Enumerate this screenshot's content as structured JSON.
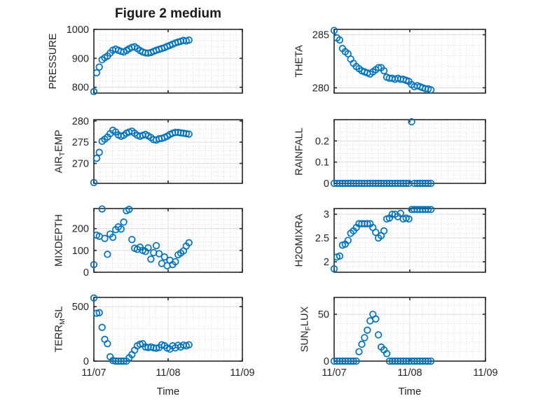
{
  "figure": {
    "title": "Figure 2 medium",
    "layout": "4x2-subplot-grid",
    "background": "#ffffff"
  },
  "style": {
    "axes_color": "#262626",
    "major_grid_color": "#dcdcdc",
    "minor_grid_color": "#d6d6d6",
    "marker_color": "#0072BD",
    "marker_shape": "open-circle"
  },
  "x_axis": {
    "xlabel": "Time",
    "xlim_days": [
      0,
      2
    ],
    "xticks_days": [
      0,
      1,
      2
    ],
    "xtick_labels": [
      "11/07",
      "11/08",
      "11/09"
    ],
    "x_minor_divisions_per_day": 12,
    "t_days": [
      0.0,
      0.037,
      0.073,
      0.11,
      0.146,
      0.183,
      0.219,
      0.256,
      0.293,
      0.329,
      0.366,
      0.402,
      0.439,
      0.475,
      0.512,
      0.549,
      0.585,
      0.622,
      0.658,
      0.695,
      0.731,
      0.768,
      0.805,
      0.841,
      0.878,
      0.914,
      0.951,
      0.987,
      1.024,
      1.06,
      1.097,
      1.134,
      1.17,
      1.207,
      1.243,
      1.28
    ]
  },
  "chart_data": [
    {
      "type": "scatter",
      "name": "pressure",
      "ylabel": {
        "pre": "PRESSURE",
        "sub": "",
        "post": ""
      },
      "ylim": [
        780,
        1000
      ],
      "yticks": [
        800,
        900,
        1000
      ],
      "ytick_labels": [
        "800",
        "900",
        "1000"
      ],
      "y_minor_step": 20,
      "values": [
        785,
        850,
        870,
        895,
        902,
        908,
        918,
        928,
        932,
        928,
        924,
        922,
        927,
        933,
        938,
        940,
        934,
        927,
        922,
        919,
        918,
        920,
        924,
        928,
        931,
        934,
        937,
        941,
        945,
        949,
        953,
        956,
        959,
        962,
        960,
        963
      ]
    },
    {
      "type": "scatter",
      "name": "theta",
      "ylabel": {
        "pre": "THETA",
        "sub": "",
        "post": ""
      },
      "ylim": [
        279.5,
        285.5
      ],
      "yticks": [
        280,
        285
      ],
      "ytick_labels": [
        "280",
        "285"
      ],
      "y_minor_step": 1,
      "values": [
        285.4,
        284.7,
        284.5,
        283.7,
        283.4,
        283.2,
        282.7,
        282.3,
        282.0,
        281.8,
        281.6,
        281.5,
        281.4,
        281.3,
        281.5,
        281.7,
        281.9,
        281.9,
        281.6,
        281.0,
        280.9,
        280.9,
        280.8,
        280.9,
        280.8,
        280.8,
        280.7,
        280.6,
        280.3,
        280.1,
        280.2,
        280.1,
        280.0,
        279.9,
        279.9,
        279.8
      ]
    },
    {
      "type": "scatter",
      "name": "air-temp",
      "ylabel": {
        "pre": "AIR",
        "sub": "T",
        "post": "EMP"
      },
      "ylim": [
        265.3,
        280.3
      ],
      "yticks": [
        270,
        275,
        280
      ],
      "ytick_labels": [
        "270",
        "275",
        "280"
      ],
      "y_minor_step": 1,
      "values": [
        265.5,
        271.2,
        272.6,
        275.2,
        275.7,
        276.2,
        277.0,
        277.8,
        277.4,
        276.7,
        276.4,
        276.6,
        277.1,
        277.4,
        277.6,
        277.1,
        276.6,
        276.4,
        276.6,
        276.8,
        276.5,
        276.1,
        275.6,
        275.5,
        275.8,
        275.9,
        276.1,
        276.4,
        276.8,
        277.1,
        277.3,
        277.3,
        277.2,
        277.1,
        277.0,
        276.9
      ]
    },
    {
      "type": "scatter",
      "name": "rainfall",
      "ylabel": {
        "pre": "RAINFALL",
        "sub": "",
        "post": ""
      },
      "ylim": [
        0,
        0.3
      ],
      "yticks": [
        0,
        0.1,
        0.2
      ],
      "ytick_labels": [
        "0",
        "0.1",
        "0.2"
      ],
      "y_minor_step": 0.02,
      "values": [
        0,
        0,
        0,
        0,
        0,
        0,
        0,
        0,
        0,
        0,
        0,
        0,
        0,
        0,
        0,
        0,
        0,
        0,
        0,
        0,
        0,
        0,
        0,
        0,
        0,
        0,
        0,
        0,
        0.29,
        0,
        0,
        0,
        0,
        0,
        0,
        0
      ]
    },
    {
      "type": "scatter",
      "name": "mixdepth",
      "ylabel": {
        "pre": "MIXDEPTH",
        "sub": "",
        "post": ""
      },
      "ylim": [
        0,
        292
      ],
      "yticks": [
        0,
        100,
        200
      ],
      "ytick_labels": [
        "0",
        "100",
        "200"
      ],
      "y_minor_step": 20,
      "values": [
        35,
        170,
        165,
        290,
        155,
        82,
        175,
        160,
        195,
        208,
        198,
        230,
        282,
        288,
        150,
        110,
        105,
        115,
        100,
        95,
        112,
        60,
        90,
        122,
        85,
        40,
        70,
        30,
        55,
        35,
        48,
        80,
        88,
        98,
        120,
        135
      ]
    },
    {
      "type": "scatter",
      "name": "h2omixra",
      "ylabel": {
        "pre": "H2OMIXRA",
        "sub": "",
        "post": ""
      },
      "ylim": [
        1.78,
        3.12
      ],
      "yticks": [
        2,
        2.5,
        3
      ],
      "ytick_labels": [
        "2",
        "2.5",
        "3"
      ],
      "y_minor_step": 0.1,
      "values": [
        1.85,
        2.1,
        2.12,
        2.35,
        2.37,
        2.45,
        2.6,
        2.65,
        2.72,
        2.8,
        2.8,
        2.8,
        2.8,
        2.8,
        2.72,
        2.62,
        2.5,
        2.55,
        2.65,
        2.9,
        2.92,
        3.0,
        3.0,
        2.95,
        3.02,
        2.9,
        2.92,
        2.9,
        3.1,
        3.1,
        3.1,
        3.1,
        3.1,
        3.1,
        3.1,
        3.1
      ]
    },
    {
      "type": "scatter",
      "name": "terr-msl",
      "ylabel": {
        "pre": "TERR",
        "sub": "M",
        "post": "SL"
      },
      "ylim": [
        0,
        585
      ],
      "yticks": [
        0,
        500
      ],
      "ytick_labels": [
        "0",
        "500"
      ],
      "y_minor_step": 100,
      "values": [
        580,
        440,
        445,
        310,
        200,
        160,
        40,
        5,
        0,
        0,
        0,
        0,
        0,
        30,
        60,
        100,
        140,
        155,
        160,
        130,
        125,
        130,
        122,
        118,
        125,
        150,
        142,
        120,
        110,
        140,
        122,
        145,
        130,
        148,
        140,
        150
      ]
    },
    {
      "type": "scatter",
      "name": "sun-flux",
      "ylabel": {
        "pre": "SUN",
        "sub": "F",
        "post": "LUX"
      },
      "ylim": [
        0,
        68
      ],
      "yticks": [
        0,
        50
      ],
      "ytick_labels": [
        "0",
        "50"
      ],
      "y_minor_step": 10,
      "values": [
        0,
        0,
        0,
        0,
        0,
        0,
        0,
        0,
        0,
        10,
        18,
        25,
        33,
        43,
        50,
        45,
        28,
        15,
        12,
        8,
        0,
        0,
        0,
        0,
        0,
        0,
        0,
        0,
        0,
        0,
        0,
        0,
        0,
        0,
        0,
        0
      ]
    }
  ]
}
